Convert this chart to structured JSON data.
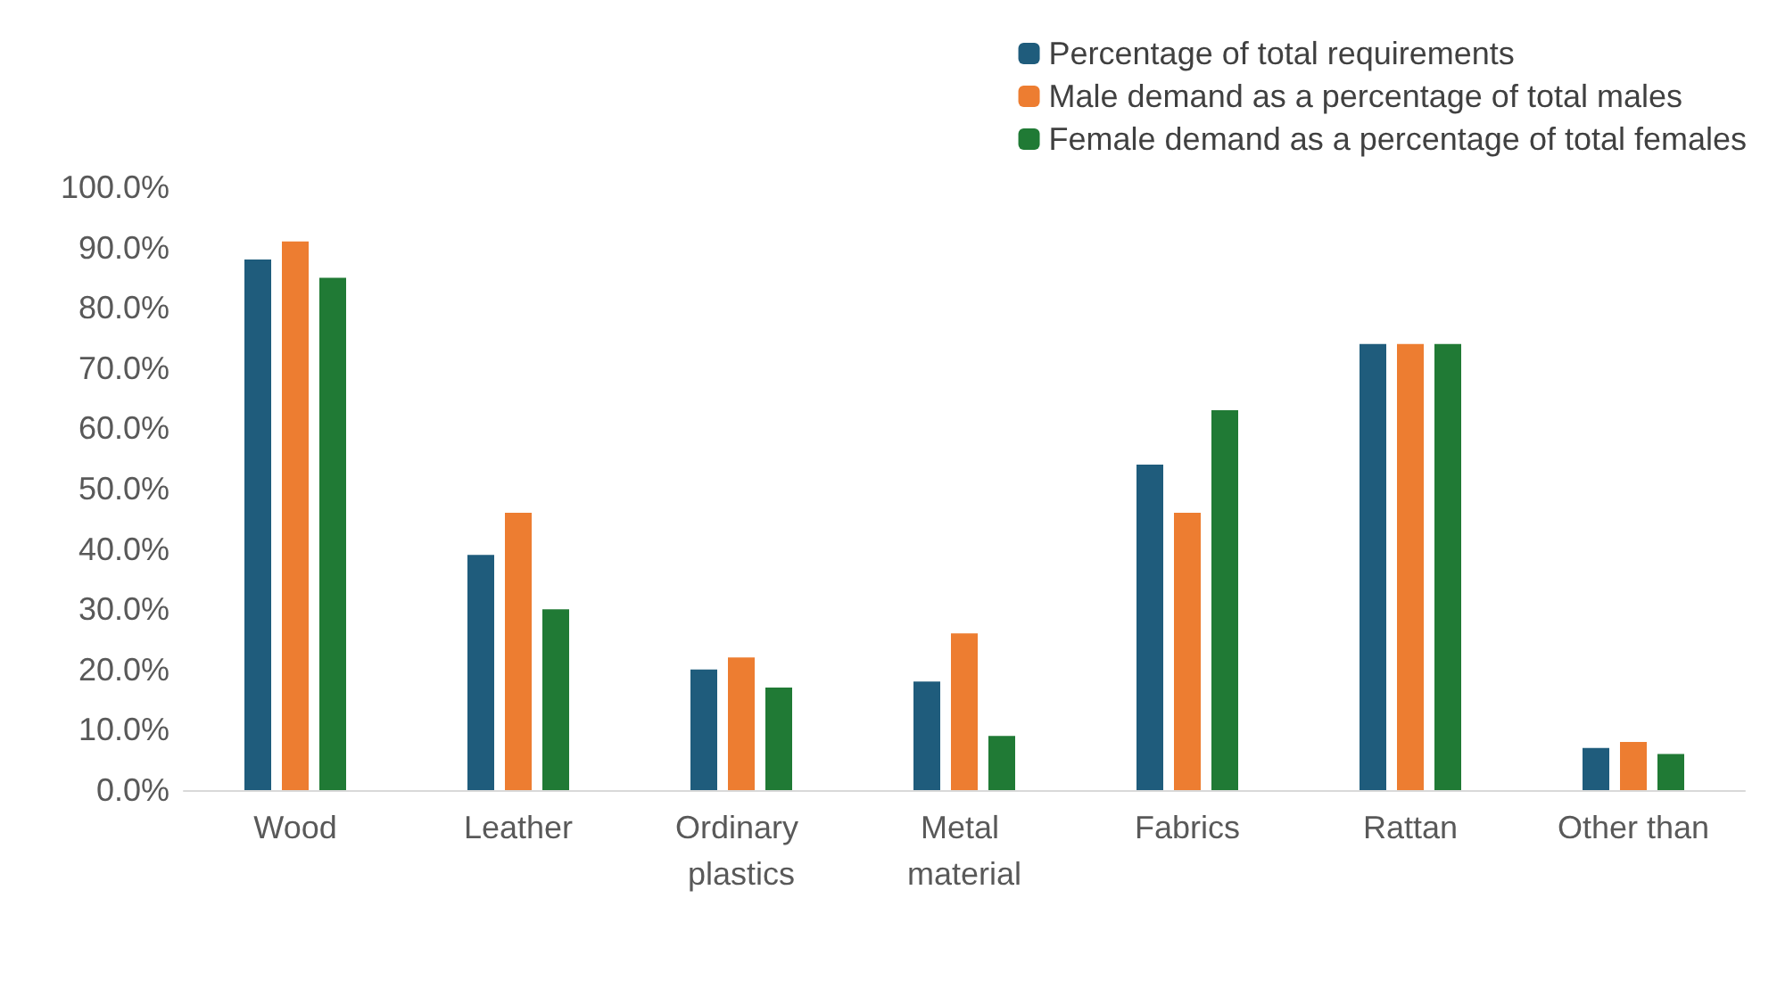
{
  "chart_data": {
    "type": "bar",
    "categories": [
      "Wood",
      "Leather",
      "Ordinary plastics",
      "Metal material",
      "Fabrics",
      "Rattan",
      "Other than"
    ],
    "series": [
      {
        "name": "Percentage of total requirements",
        "color": "#1f5c7c",
        "values": [
          88,
          39,
          20,
          18,
          54,
          74,
          7
        ]
      },
      {
        "name": "Male demand as a percentage of total males",
        "color": "#ed7d31",
        "values": [
          91,
          46,
          22,
          26,
          46,
          74,
          8
        ]
      },
      {
        "name": "Female demand as a percentage of total females",
        "color": "#207a35",
        "values": [
          85,
          30,
          17,
          9,
          63,
          74,
          6
        ]
      }
    ],
    "ylim": [
      0,
      100
    ],
    "yticks": [
      {
        "value": 0,
        "label": "0.0%"
      },
      {
        "value": 10,
        "label": "10.0%"
      },
      {
        "value": 20,
        "label": "20.0%"
      },
      {
        "value": 30,
        "label": "30.0%"
      },
      {
        "value": 40,
        "label": "40.0%"
      },
      {
        "value": 50,
        "label": "50.0%"
      },
      {
        "value": 60,
        "label": "60.0%"
      },
      {
        "value": 70,
        "label": "70.0%"
      },
      {
        "value": 80,
        "label": "80.0%"
      },
      {
        "value": 90,
        "label": "90.0%"
      },
      {
        "value": 100,
        "label": "100.0%"
      }
    ],
    "grid": false,
    "legend": "top right"
  }
}
